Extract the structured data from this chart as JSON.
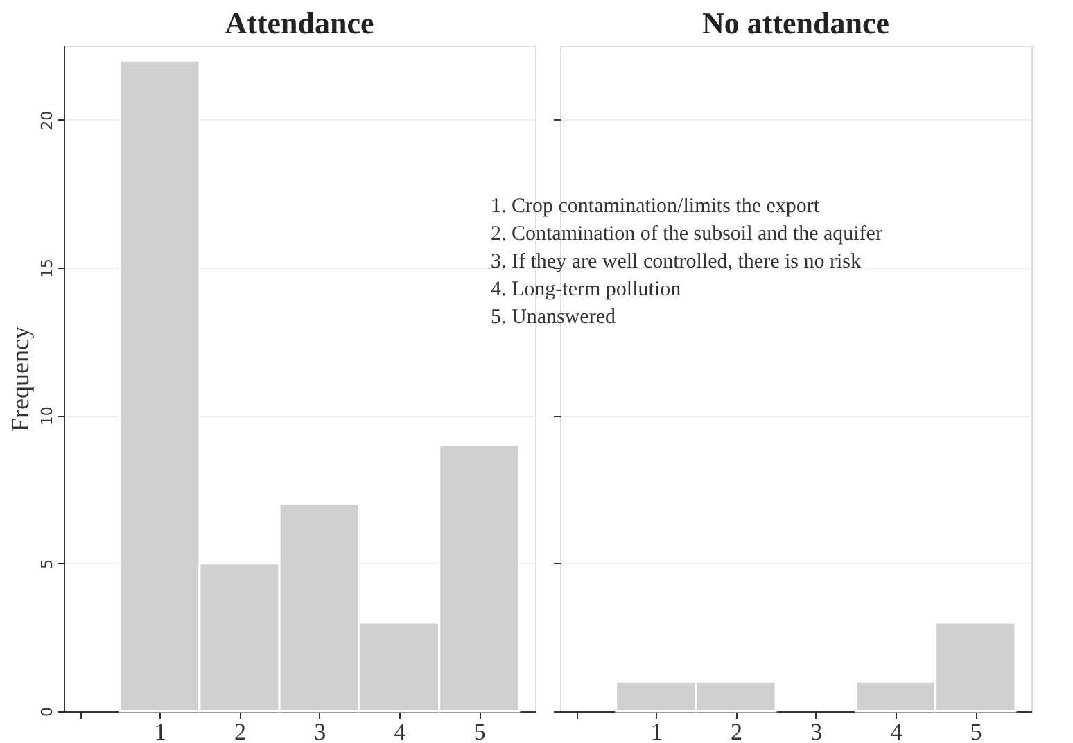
{
  "chart_data": [
    {
      "type": "histogram",
      "title": "Attendance",
      "ylabel": "Frequency",
      "bins": [
        0.5,
        1.5,
        2.5,
        3.5,
        4.5,
        5.5
      ],
      "values": [
        22,
        5,
        7,
        3,
        9
      ],
      "color": "#d0d0d0",
      "xlim": [
        -0.2,
        5.7
      ],
      "xticks": [
        {
          "value": 0,
          "label": null
        },
        1,
        2,
        3,
        4,
        5
      ],
      "ylim": [
        0,
        22.5
      ],
      "yticks": [
        0,
        5,
        10,
        15,
        20
      ],
      "grid": "y"
    },
    {
      "type": "histogram",
      "title": "No attendance",
      "bins": [
        0.5,
        1.5,
        2.5,
        3.5,
        4.5,
        5.5
      ],
      "values": [
        1,
        1,
        0,
        1,
        3
      ],
      "color": "#d0d0d0",
      "xlim": [
        -0.2,
        5.7
      ],
      "xticks": [
        {
          "value": 0,
          "label": null
        },
        1,
        2,
        3,
        4,
        5
      ],
      "ylim": [
        0,
        22.5
      ],
      "yticks": [
        0,
        5,
        10,
        15,
        20
      ],
      "grid": "y",
      "tick_labels": "x",
      "annotations": [
        "1. Crop contamination/limits the export",
        "2. Contamination of the subsoil and the aquifer",
        "3. If they are well controlled, there is no risk",
        "4. Long-term pollution",
        "5. Unanswered"
      ]
    }
  ]
}
